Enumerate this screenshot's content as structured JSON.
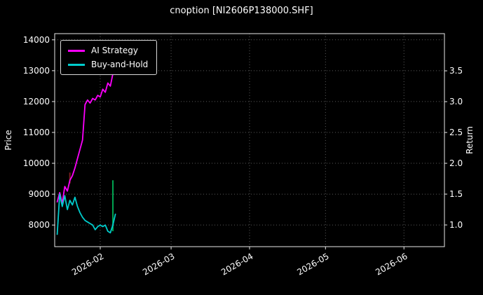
{
  "title": "cnoption [NI2606P138000.SHF]",
  "colors": {
    "background": "#000000",
    "text": "#ffffff",
    "grid": "#5a5a5a",
    "frame": "#e8e8e8",
    "ai_strategy": "#ff00ff",
    "buy_and_hold": "#00cccc",
    "bar_up": "#00a550",
    "bar_down": "#7a1f1f"
  },
  "chart_data": {
    "type": "line",
    "title": "cnoption [NI2606P138000.SHF]",
    "grid": true,
    "legend_position": "upper left",
    "x_domain": [
      "2026-01-14",
      "2026-06-17"
    ],
    "x_ticks": [
      {
        "date": "2026-02-01",
        "label": "2026-02"
      },
      {
        "date": "2026-03-01",
        "label": "2026-03"
      },
      {
        "date": "2026-04-01",
        "label": "2026-04"
      },
      {
        "date": "2026-05-01",
        "label": "2026-05"
      },
      {
        "date": "2026-06-01",
        "label": "2026-06"
      }
    ],
    "left_axis": {
      "label": "Price",
      "range": [
        7300,
        14200
      ],
      "ticks": [
        8000,
        9000,
        10000,
        11000,
        12000,
        13000,
        14000
      ]
    },
    "right_axis": {
      "label": "Return",
      "range": [
        0.648,
        4.103
      ],
      "ticks": [
        1.0,
        1.5,
        2.0,
        2.5,
        3.0,
        3.5
      ]
    },
    "dates": [
      "2026-01-15",
      "2026-01-16",
      "2026-01-17",
      "2026-01-18",
      "2026-01-19",
      "2026-01-20",
      "2026-01-21",
      "2026-01-22",
      "2026-01-23",
      "2026-01-24",
      "2026-01-25",
      "2026-01-26",
      "2026-01-27",
      "2026-01-28",
      "2026-01-29",
      "2026-01-30",
      "2026-01-31",
      "2026-02-01",
      "2026-02-02",
      "2026-02-03",
      "2026-02-04",
      "2026-02-05",
      "2026-02-06",
      "2026-02-07"
    ],
    "series": [
      {
        "name": "AI Strategy",
        "color": "#ff00ff",
        "axis": "left",
        "values": [
          8750,
          9050,
          8700,
          9250,
          9100,
          9450,
          9600,
          9850,
          10150,
          10450,
          10750,
          11900,
          12050,
          11950,
          12100,
          12050,
          12200,
          12150,
          12400,
          12300,
          12600,
          12500,
          12900,
          13200
        ]
      },
      {
        "name": "Buy-and-Hold",
        "color": "#00cccc",
        "axis": "left",
        "values": [
          7700,
          9000,
          8600,
          8950,
          8500,
          8800,
          8650,
          8900,
          8600,
          8400,
          8250,
          8150,
          8100,
          8050,
          8000,
          7850,
          7950,
          8000,
          7950,
          8000,
          7800,
          7750,
          8000,
          8350
        ]
      }
    ],
    "bars": [
      {
        "date": "2026-01-20",
        "low": 9350,
        "high": 9700,
        "color": "#7a1f1f"
      },
      {
        "date": "2026-02-06",
        "low": 7800,
        "high": 9450,
        "color": "#00a550"
      }
    ]
  },
  "legend": {
    "items": [
      {
        "label": "AI Strategy"
      },
      {
        "label": "Buy-and-Hold"
      }
    ]
  }
}
